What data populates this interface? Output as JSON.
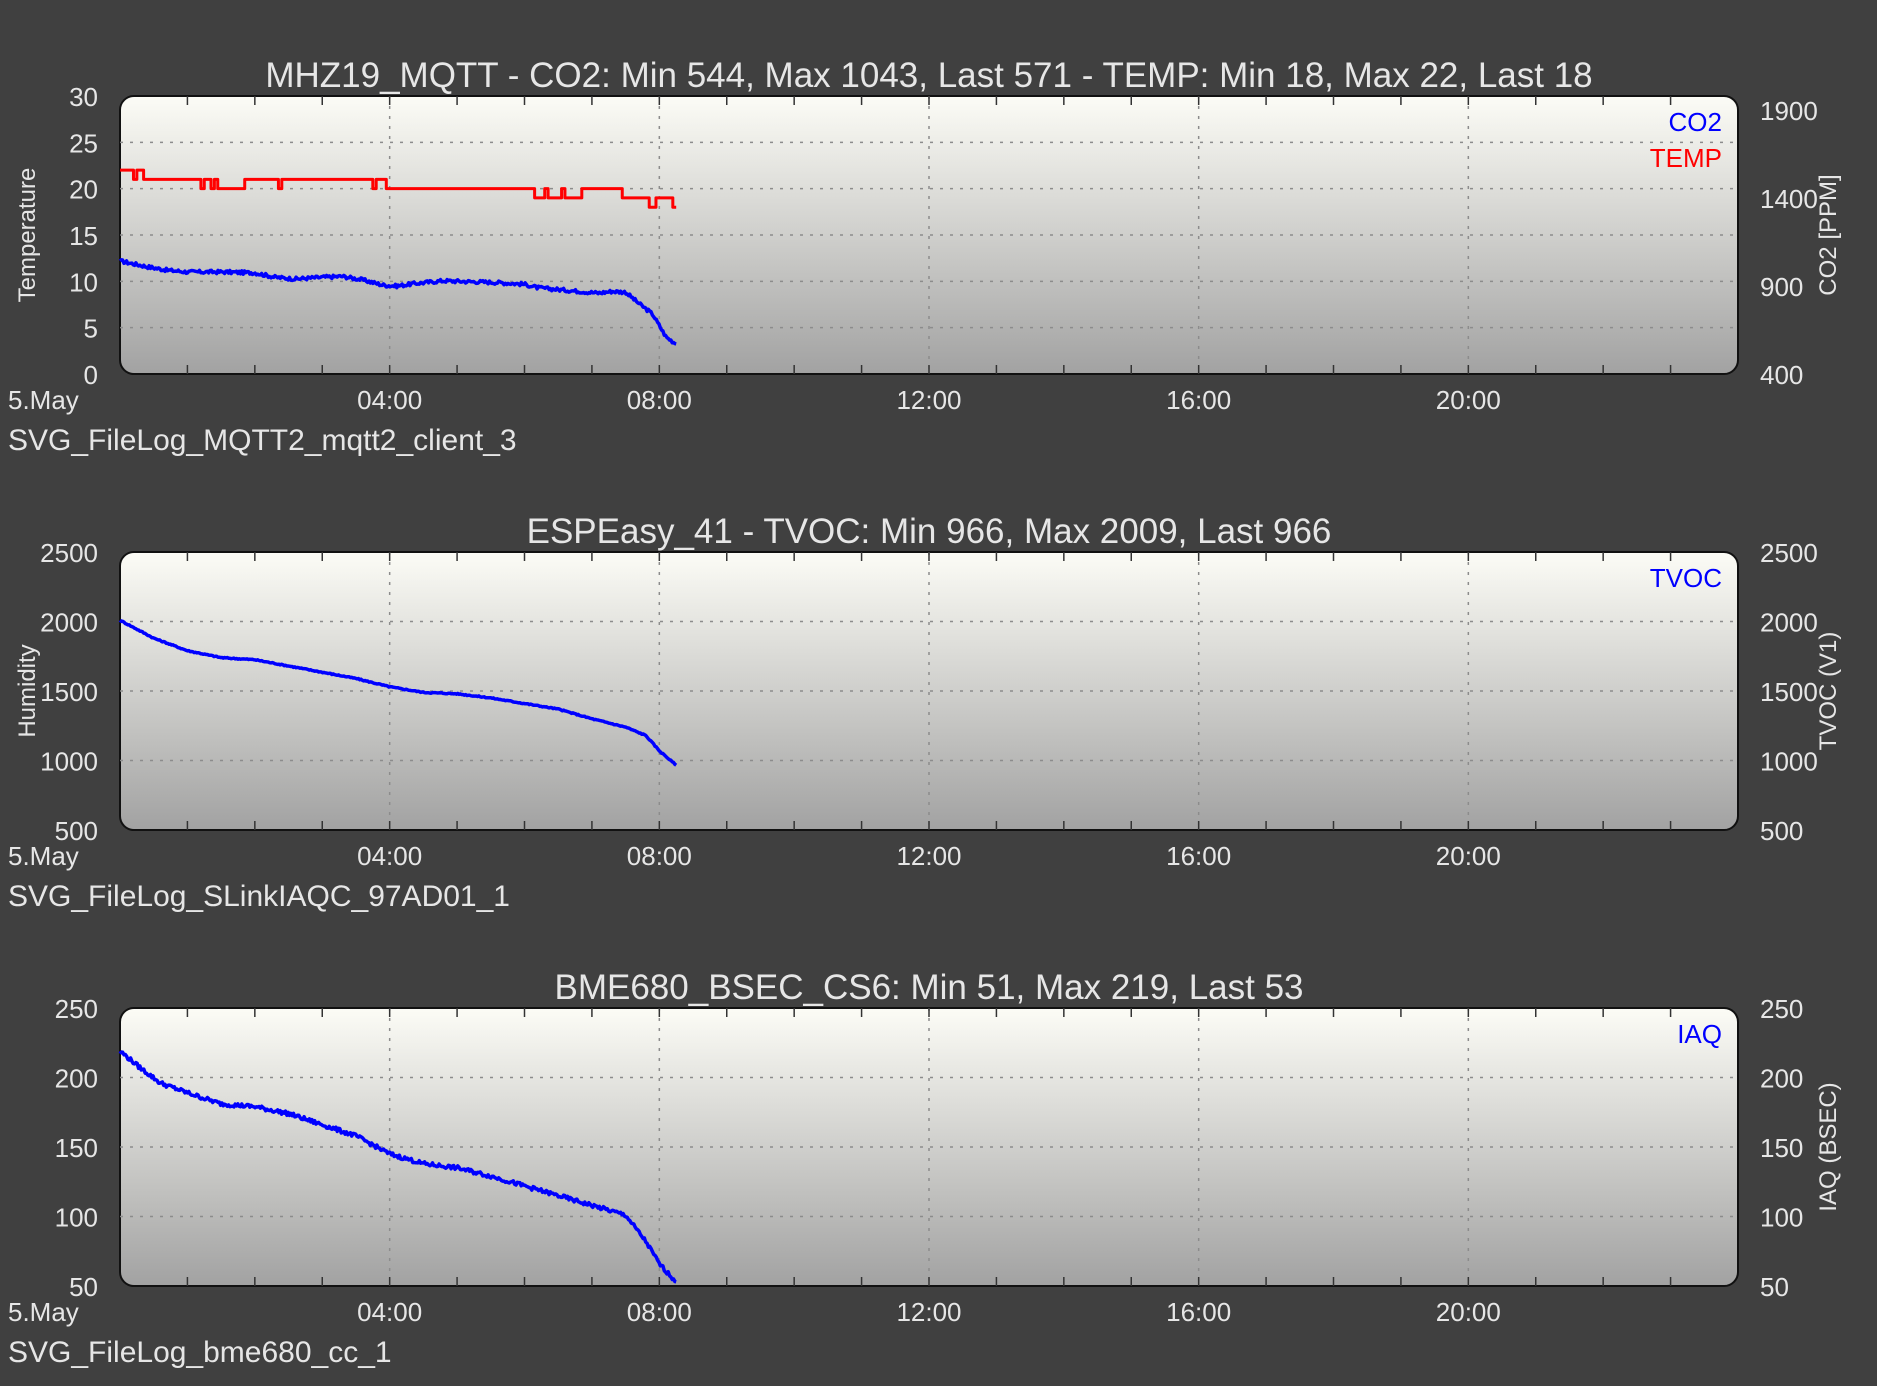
{
  "colors": {
    "background": "#404040",
    "text": "#e6e6e6",
    "series_blue": "#0000ff",
    "series_red": "#ff0000",
    "grid": "#8c8c8c",
    "plot_bg_top": "#fcfcf6",
    "plot_bg_bottom": "#a2a2a2"
  },
  "chart_data": [
    {
      "type": "line",
      "title": "MHZ19_MQTT - CO2: Min 544, Max 1043, Last 571 - TEMP: Min 18, Max 22, Last 18",
      "footer": "SVG_FileLog_MQTT2_mqtt2_client_3",
      "x_start_label": "5.May",
      "xlim": [
        0,
        24
      ],
      "x_ticks": [
        4,
        8,
        12,
        16,
        20
      ],
      "x_tick_labels": [
        "04:00",
        "08:00",
        "12:00",
        "16:00",
        "20:00"
      ],
      "ylabel_left": "Temperature",
      "ylabel_right": "CO2 [PPM]",
      "ylim_left": [
        0,
        30
      ],
      "ylim_right": [
        400,
        1980
      ],
      "y_left_ticks": [
        0,
        5,
        10,
        15,
        20,
        25,
        30
      ],
      "y_right_ticks": [
        400,
        900,
        1400,
        1900
      ],
      "grid": true,
      "legend_position": "top-right",
      "series": [
        {
          "name": "CO2",
          "axis": "right",
          "color": "#0000ff",
          "noise": 10,
          "x": [
            0,
            0.15,
            0.4,
            0.7,
            1.0,
            1.5,
            2.0,
            2.3,
            2.6,
            3.0,
            3.3,
            3.6,
            3.9,
            4.1,
            4.4,
            4.8,
            5.2,
            5.6,
            6.0,
            6.2,
            6.5,
            6.8,
            7.1,
            7.3,
            7.5,
            7.7,
            7.9,
            8.1,
            8.25
          ],
          "y": [
            1043,
            1030,
            1010,
            990,
            980,
            980,
            975,
            950,
            940,
            950,
            955,
            935,
            905,
            900,
            915,
            930,
            925,
            920,
            910,
            890,
            880,
            870,
            860,
            870,
            865,
            800,
            740,
            610,
            571
          ]
        },
        {
          "name": "TEMP",
          "axis": "left",
          "color": "#ff0000",
          "step": true,
          "x": [
            0,
            0.2,
            0.25,
            0.35,
            0.4,
            1.2,
            1.25,
            1.35,
            1.4,
            1.45,
            1.55,
            1.6,
            1.8,
            1.85,
            2.35,
            2.4,
            3.75,
            3.8,
            3.9,
            3.95,
            6.1,
            6.15,
            6.3,
            6.35,
            6.55,
            6.6,
            6.8,
            6.85,
            7.3,
            7.35,
            7.45,
            7.5,
            7.55,
            7.6,
            7.8,
            7.85,
            7.95,
            8.0,
            8.2,
            8.25
          ],
          "y": [
            22,
            21,
            22,
            21,
            21,
            20,
            21,
            20,
            21,
            20,
            20,
            20,
            20,
            21,
            20,
            21,
            20,
            21,
            21,
            20,
            20,
            19,
            20,
            19,
            20,
            19,
            19,
            20,
            20,
            20,
            19,
            19,
            19,
            19,
            19,
            18,
            19,
            19,
            18,
            18
          ]
        }
      ]
    },
    {
      "type": "line",
      "title": "ESPEasy_41 - TVOC: Min 966, Max 2009, Last 966",
      "footer": "SVG_FileLog_SLinkIAQC_97AD01_1",
      "x_start_label": "5.May",
      "xlim": [
        0,
        24
      ],
      "x_ticks": [
        4,
        8,
        12,
        16,
        20
      ],
      "x_tick_labels": [
        "04:00",
        "08:00",
        "12:00",
        "16:00",
        "20:00"
      ],
      "ylabel_left": "Humidity",
      "ylabel_right": "TVOC (V1)",
      "ylim_left": [
        500,
        2500
      ],
      "ylim_right": [
        500,
        2500
      ],
      "y_left_ticks": [
        500,
        1000,
        1500,
        2000,
        2500
      ],
      "y_right_ticks": [
        500,
        1000,
        1500,
        2000,
        2500
      ],
      "grid": true,
      "legend_position": "top-right",
      "series": [
        {
          "name": "TVOC",
          "axis": "right",
          "color": "#0000ff",
          "noise": 4,
          "x": [
            0,
            0.5,
            1.0,
            1.5,
            2.0,
            2.5,
            3.0,
            3.5,
            4.0,
            4.5,
            5.0,
            5.5,
            6.0,
            6.5,
            7.0,
            7.5,
            7.8,
            8.0,
            8.25
          ],
          "y": [
            2009,
            1880,
            1790,
            1740,
            1725,
            1680,
            1635,
            1590,
            1530,
            1490,
            1480,
            1450,
            1410,
            1370,
            1300,
            1240,
            1180,
            1070,
            966
          ]
        }
      ]
    },
    {
      "type": "line",
      "title": "BME680_BSEC_CS6: Min 51, Max 219, Last 53",
      "footer": "SVG_FileLog_bme680_cc_1",
      "x_start_label": "5.May",
      "xlim": [
        0,
        24
      ],
      "x_ticks": [
        4,
        8,
        12,
        16,
        20
      ],
      "x_tick_labels": [
        "04:00",
        "08:00",
        "12:00",
        "16:00",
        "20:00"
      ],
      "ylabel_left": "",
      "ylabel_right": "IAQ (BSEC)",
      "ylim_left": [
        50,
        250
      ],
      "ylim_right": [
        50,
        250
      ],
      "y_left_ticks": [
        50,
        100,
        150,
        200,
        250
      ],
      "y_right_ticks": [
        50,
        100,
        150,
        200,
        250
      ],
      "grid": true,
      "legend_position": "top-right",
      "series": [
        {
          "name": "IAQ",
          "axis": "right",
          "color": "#0000ff",
          "noise": 1.5,
          "x": [
            0,
            0.3,
            0.6,
            1.0,
            1.5,
            2.0,
            2.5,
            3.0,
            3.5,
            4.0,
            4.5,
            5.0,
            5.5,
            6.0,
            6.5,
            7.0,
            7.5,
            7.8,
            8.0,
            8.25
          ],
          "y": [
            219,
            207,
            196,
            189,
            181,
            179,
            174,
            166,
            158,
            145,
            138,
            135,
            129,
            122,
            115,
            108,
            101,
            82,
            66,
            53
          ]
        }
      ]
    }
  ]
}
